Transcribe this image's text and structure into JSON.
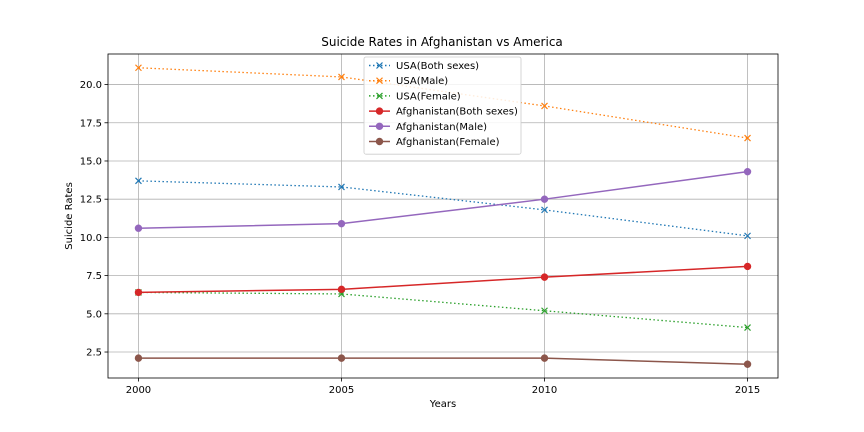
{
  "chart_data": {
    "type": "line",
    "title": "Suicide Rates in Afghanistan vs America",
    "xlabel": "Years",
    "ylabel": "Suicide Rates",
    "x": [
      2000,
      2005,
      2010,
      2015
    ],
    "xticks": [
      "2000",
      "2005",
      "2010",
      "2015"
    ],
    "xlim": [
      1999.25,
      2015.75
    ],
    "ylim": [
      0.8,
      22.0
    ],
    "yticks": [
      "2.5",
      "5.0",
      "7.5",
      "10.0",
      "12.5",
      "15.0",
      "17.5",
      "20.0"
    ],
    "grid": true,
    "legend_position": "upper center",
    "series": [
      {
        "name": "USA(Both sexes)",
        "values": [
          13.7,
          13.3,
          11.8,
          10.1
        ],
        "color": "#1f77b4",
        "linestyle": "dotted",
        "marker": "x"
      },
      {
        "name": "USA(Male)",
        "values": [
          21.1,
          20.5,
          18.6,
          16.5
        ],
        "color": "#ff7f0e",
        "linestyle": "dotted",
        "marker": "x"
      },
      {
        "name": "USA(Female)",
        "values": [
          6.4,
          6.3,
          5.2,
          4.1
        ],
        "color": "#2ca02c",
        "linestyle": "dotted",
        "marker": "x"
      },
      {
        "name": "Afghanistan(Both sexes)",
        "values": [
          6.4,
          6.6,
          7.4,
          8.1
        ],
        "color": "#d62728",
        "linestyle": "solid",
        "marker": "o"
      },
      {
        "name": "Afghanistan(Male)",
        "values": [
          10.6,
          10.9,
          12.5,
          14.3
        ],
        "color": "#9467bd",
        "linestyle": "solid",
        "marker": "o"
      },
      {
        "name": "Afghanistan(Female)",
        "values": [
          2.1,
          2.1,
          2.1,
          1.7
        ],
        "color": "#8c564b",
        "linestyle": "solid",
        "marker": "o"
      }
    ]
  }
}
